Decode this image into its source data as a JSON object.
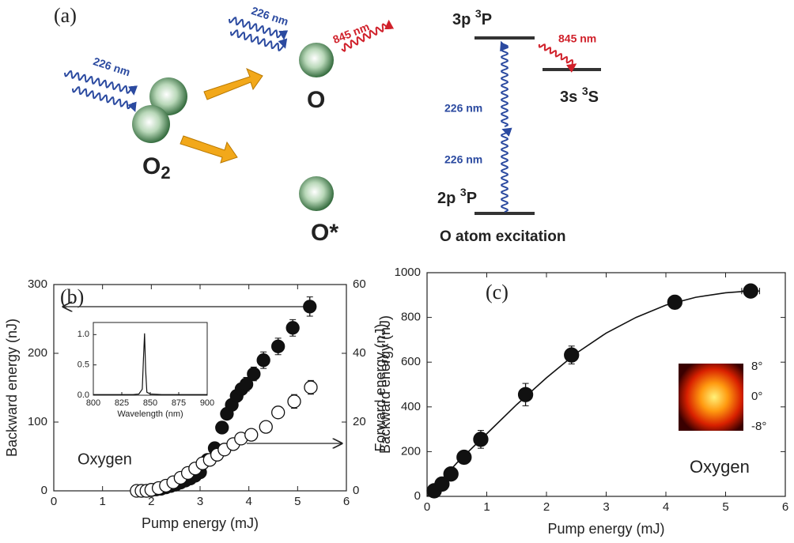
{
  "panel_a": {
    "label": "(a)",
    "molecule": {
      "symbol": "O",
      "subscript": "2"
    },
    "atom": "O",
    "excited_atom": "O*",
    "pump_labels": [
      "226 nm",
      "226 nm"
    ],
    "emission_label": "845 nm",
    "levels": [
      {
        "config": "3p",
        "multiplicity": "3",
        "term": "P"
      },
      {
        "config": "3s",
        "multiplicity": "3",
        "term": "S"
      },
      {
        "config": "2p",
        "multiplicity": "3",
        "term": "P"
      }
    ],
    "transition_labels": [
      "226 nm",
      "226 nm",
      "845 nm"
    ],
    "caption": "O atom excitation"
  },
  "chart_data": [
    {
      "type": "scatter",
      "panel_label": "(b)",
      "xlabel": "Pump energy (mJ)",
      "ylabel": "Backward energy (nJ)",
      "y2label": "Forward energy (nJ)",
      "annotation": "Oxygen",
      "xlim": [
        0,
        6
      ],
      "xticks": [
        0,
        1,
        2,
        3,
        4,
        5,
        6
      ],
      "ylim": [
        0,
        300
      ],
      "yticks": [
        0,
        100,
        200,
        300
      ],
      "y2lim": [
        0,
        60
      ],
      "y2ticks": [
        0,
        20,
        40,
        60
      ],
      "series": [
        {
          "marker": "filled",
          "color": "#111111",
          "x": [
            1.8,
            1.9,
            2.0,
            2.1,
            2.2,
            2.3,
            2.4,
            2.5,
            2.6,
            2.7,
            2.8,
            2.9,
            3.0,
            3.15,
            3.3,
            3.45,
            3.55,
            3.65,
            3.75,
            3.85,
            3.95,
            4.1,
            4.3,
            4.6,
            4.9,
            5.25
          ],
          "values": [
            0,
            0,
            1,
            2,
            3,
            5,
            7,
            9,
            12,
            15,
            18,
            22,
            27,
            45,
            62,
            92,
            112,
            125,
            138,
            148,
            155,
            170,
            190,
            210,
            237,
            268
          ],
          "errors": [
            2,
            2,
            2,
            2,
            2,
            2,
            2,
            2,
            2,
            2,
            2,
            2,
            2,
            6,
            8,
            8,
            8,
            8,
            8,
            8,
            10,
            10,
            12,
            12,
            12,
            14
          ],
          "x_errors": [
            0.1,
            0.1,
            0.1,
            0.1,
            0.1,
            0.1,
            0.1,
            0.1,
            0.1,
            0.1,
            0.1,
            0.1,
            0.1,
            0.1,
            0.1,
            0.1,
            0.1,
            0.1,
            0.1,
            0.1,
            0.1,
            0.1,
            0.1,
            0.1,
            0.1,
            0.1
          ]
        },
        {
          "marker": "open",
          "color": "#111111",
          "axis": "y2",
          "x": [
            1.7,
            1.8,
            1.9,
            2.0,
            2.15,
            2.3,
            2.45,
            2.6,
            2.75,
            2.9,
            3.05,
            3.2,
            3.35,
            3.5,
            3.68,
            3.84,
            4.05,
            4.35,
            4.6,
            4.93,
            5.27
          ],
          "values": [
            0,
            0,
            0,
            0.3,
            0.8,
            1.5,
            2.5,
            3.8,
            5.2,
            6.5,
            8,
            9,
            10.5,
            12,
            13.6,
            15.2,
            16.3,
            18.6,
            22.8,
            26,
            30.1
          ],
          "errors": [
            0.5,
            0.5,
            0.5,
            0.5,
            0.5,
            0.5,
            0.5,
            0.5,
            0.5,
            0.5,
            0.5,
            0.5,
            0.5,
            0.5,
            1,
            1,
            1,
            1.5,
            1.5,
            2,
            2
          ]
        }
      ],
      "inset": {
        "type": "line",
        "xlabel": "Wavelength (nm)",
        "xlim": [
          800,
          900
        ],
        "xticks": [
          800,
          825,
          850,
          875,
          900
        ],
        "ylim": [
          0,
          1.2
        ],
        "yticks": [
          {
            "value": 0,
            "label": "0.0"
          },
          {
            "value": 0.5,
            "label": "0.5"
          },
          {
            "value": 1,
            "label": "1.0"
          }
        ],
        "x": [
          800,
          820,
          835,
          840,
          843,
          844,
          845,
          846,
          847,
          850,
          860,
          880,
          900
        ],
        "values": [
          0.01,
          0.01,
          0.01,
          0.02,
          0.1,
          0.6,
          1.02,
          0.4,
          0.05,
          0.02,
          0.01,
          0.01,
          0.01
        ]
      }
    },
    {
      "type": "scatter",
      "panel_label": "(c)",
      "xlabel": "Pump energy (mJ)",
      "ylabel": "Backward energy (nJ)",
      "annotation": "Oxygen",
      "xlim": [
        0,
        6
      ],
      "xticks": [
        0,
        1,
        2,
        3,
        4,
        5,
        6
      ],
      "ylim": [
        0,
        1000
      ],
      "yticks": [
        0,
        200,
        400,
        600,
        800,
        1000
      ],
      "series": [
        {
          "marker": "filled",
          "color": "#111111",
          "x": [
            0.12,
            0.25,
            0.4,
            0.62,
            0.9,
            1.65,
            2.42,
            4.15,
            5.42
          ],
          "values": [
            25,
            55,
            100,
            175,
            255,
            455,
            632,
            868,
            918
          ],
          "errors": [
            15,
            15,
            20,
            30,
            40,
            50,
            40,
            30,
            25
          ],
          "x_errors": [
            0.05,
            0.05,
            0.05,
            0.05,
            0.08,
            0.08,
            0.1,
            0.1,
            0.15
          ]
        }
      ],
      "fit": {
        "x": [
          0,
          0.5,
          1,
          1.5,
          2,
          2.5,
          3,
          3.5,
          4,
          4.5,
          5,
          5.4
        ],
        "values": [
          0,
          150,
          280,
          410,
          530,
          640,
          730,
          800,
          855,
          890,
          910,
          918
        ]
      },
      "image_ticks": [
        "8°",
        "0°",
        "-8°"
      ]
    }
  ]
}
